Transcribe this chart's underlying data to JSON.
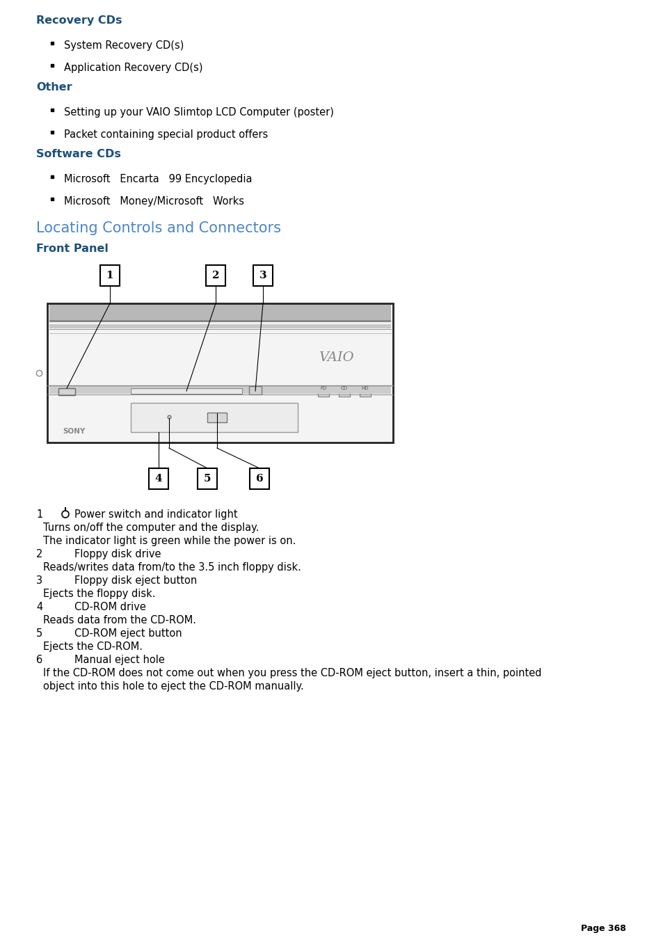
{
  "bg_color": "#ffffff",
  "heading_bold_color": "#1a4f7a",
  "locating_heading_color": "#4a86c8",
  "front_panel_color": "#1a4f7a",
  "recovery_cds_heading": "Recovery CDs",
  "recovery_items": [
    "System Recovery CD(s)",
    "Application Recovery CD(s)"
  ],
  "other_heading": "Other",
  "other_items": [
    "Setting up your VAIO Slimtop LCD Computer (poster)",
    "Packet containing special product offers"
  ],
  "software_cds_heading": "Software CDs",
  "software_items": [
    "Microsoft   Encarta   99 Encyclopedia",
    "Microsoft   Money/Microsoft   Works"
  ],
  "locating_heading": "Locating Controls and Connectors",
  "front_panel_heading": "Front Panel",
  "page_number": "Page 368",
  "desc_lines": [
    {
      "num": "1",
      "icon": true,
      "tab": false,
      "text": "Power switch and indicator light"
    },
    {
      "num": "",
      "icon": false,
      "tab": false,
      "text": "Turns on/off the computer and the display."
    },
    {
      "num": "",
      "icon": false,
      "tab": false,
      "text": "The indicator light is green while the power is on."
    },
    {
      "num": "2",
      "icon": false,
      "tab": true,
      "text": "Floppy disk drive"
    },
    {
      "num": "",
      "icon": false,
      "tab": false,
      "text": "Reads/writes data from/to the 3.5 inch floppy disk."
    },
    {
      "num": "3",
      "icon": false,
      "tab": true,
      "text": "Floppy disk eject button"
    },
    {
      "num": "",
      "icon": false,
      "tab": false,
      "text": "Ejects the floppy disk."
    },
    {
      "num": "4",
      "icon": false,
      "tab": true,
      "text": "CD-ROM drive"
    },
    {
      "num": "",
      "icon": false,
      "tab": false,
      "text": "Reads data from the CD-ROM."
    },
    {
      "num": "5",
      "icon": false,
      "tab": true,
      "text": "CD-ROM eject button"
    },
    {
      "num": "",
      "icon": false,
      "tab": false,
      "text": "Ejects the CD-ROM."
    },
    {
      "num": "6",
      "icon": false,
      "tab": true,
      "text": "Manual eject hole"
    },
    {
      "num": "",
      "icon": false,
      "tab": false,
      "text": "If the CD-ROM does not come out when you press the CD-ROM eject button, insert a thin, pointed"
    },
    {
      "num": "",
      "icon": false,
      "tab": false,
      "text": "object into this hole to eject the CD-ROM manually."
    }
  ]
}
